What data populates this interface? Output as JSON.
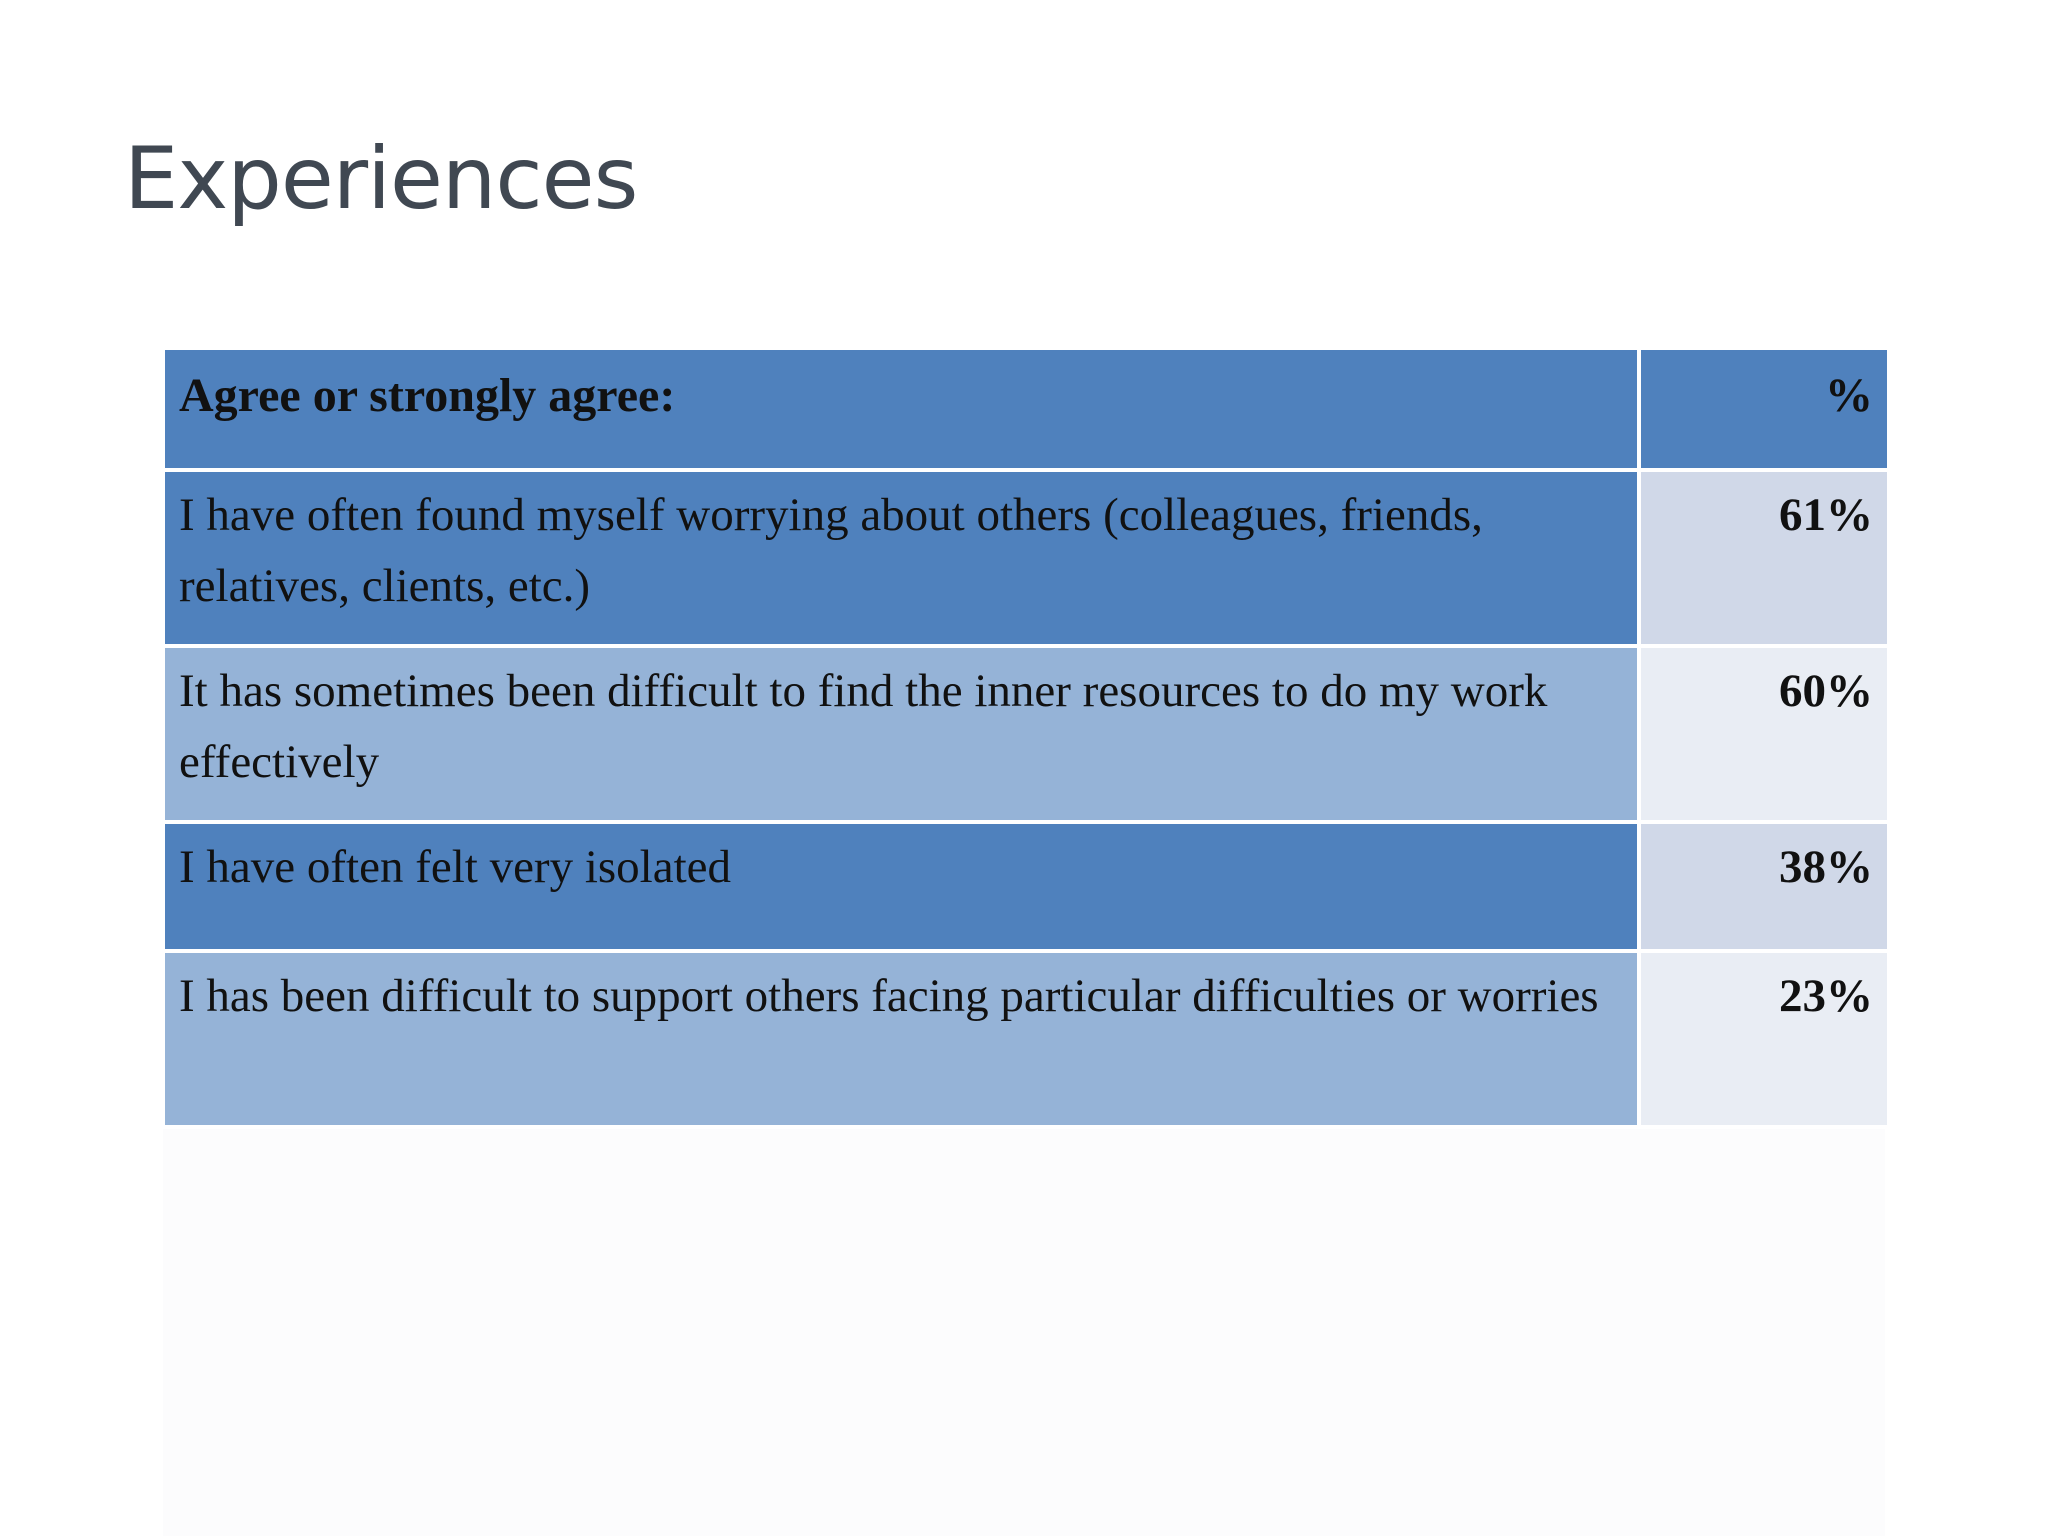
{
  "title": "Experiences",
  "table": {
    "header": {
      "statement": "Agree or strongly agree:",
      "percent": "%"
    },
    "rows": [
      {
        "statement": "I have often found myself worrying about others (colleagues, friends, relatives, clients, etc.)",
        "percent": "61%"
      },
      {
        "statement": "It has sometimes been difficult to find the inner resources to do my work effectively",
        "percent": "60%"
      },
      {
        "statement": "I have often felt very isolated",
        "percent": "38%"
      },
      {
        "statement": "I has been difficult to support others facing particular difficulties or worries",
        "percent": "23%"
      }
    ]
  },
  "colors": {
    "header_fill": "#4f81bd",
    "row_dark_fill": "#4f81bd",
    "row_light_fill": "#95b3d7",
    "pct_dark_fill": "#d0d8e8",
    "pct_light_fill": "#e9edf4",
    "title_text": "#404852"
  }
}
